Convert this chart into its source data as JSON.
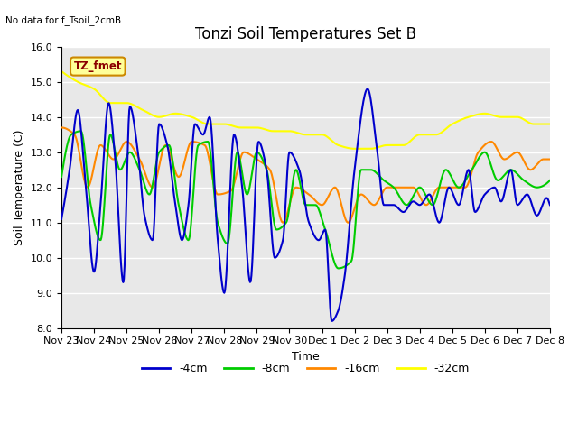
{
  "title": "Tonzi Soil Temperatures Set B",
  "xlabel": "Time",
  "ylabel": "Soil Temperature (C)",
  "no_data_label": "No data for f_Tsoil_2cmB",
  "tz_label": "TZ_fmet",
  "ylim": [
    8.0,
    16.0
  ],
  "yticks": [
    8.0,
    9.0,
    10.0,
    11.0,
    12.0,
    13.0,
    14.0,
    15.0,
    16.0
  ],
  "xtick_labels": [
    "Nov 23",
    "Nov 24",
    "Nov 25",
    "Nov 26",
    "Nov 27",
    "Nov 28",
    "Nov 29",
    "Nov 30",
    "Dec 1",
    "Dec 2",
    "Dec 3",
    "Dec 4",
    "Dec 5",
    "Dec 6",
    "Dec 7",
    "Dec 8"
  ],
  "line_colors": {
    "4cm": "#0000cc",
    "8cm": "#00cc00",
    "16cm": "#ff8800",
    "32cm": "#ffff00"
  },
  "legend_labels": [
    "-4cm",
    "-8cm",
    "-16cm",
    "-32cm"
  ],
  "background_color": "#e8e8e8",
  "figure_facecolor": "#ffffff",
  "title_fontsize": 12,
  "axis_fontsize": 9,
  "tick_fontsize": 8,
  "legend_fontsize": 9
}
